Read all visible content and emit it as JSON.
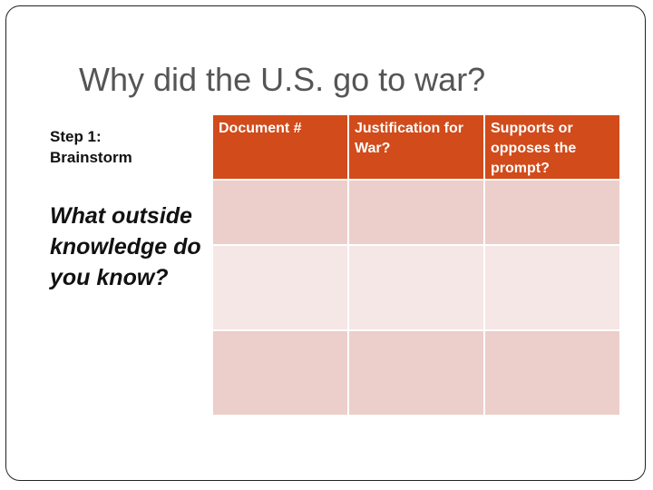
{
  "slide": {
    "title": "Why did the U.S. go to war?",
    "step_label": "Step 1: Brainstorm",
    "question": "What outside knowledge do you know?"
  },
  "table": {
    "headers": [
      "Document #",
      "Justification for War?",
      "Supports or opposes the prompt?"
    ],
    "rows": [
      [
        "",
        "",
        ""
      ],
      [
        "",
        "",
        ""
      ],
      [
        "",
        "",
        ""
      ]
    ],
    "colors": {
      "header_bg": "#d14b1b",
      "row_dark": "#eccecb",
      "row_light": "#f5e7e6"
    }
  }
}
